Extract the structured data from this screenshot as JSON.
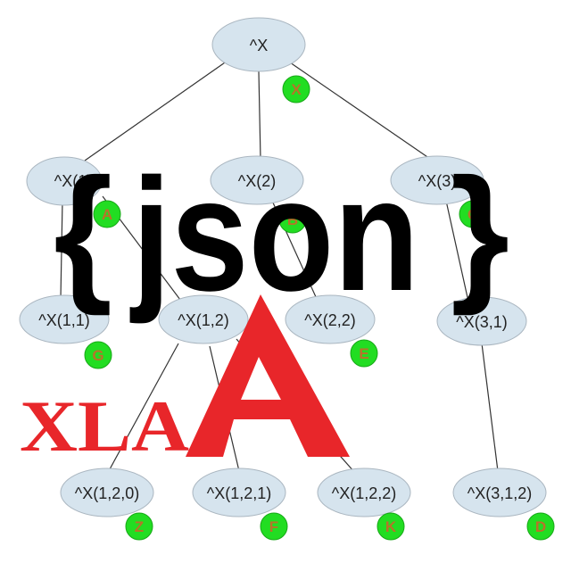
{
  "tree": {
    "nodes": [
      {
        "id": "root",
        "label": "^X",
        "badge": "X"
      },
      {
        "id": "n1",
        "label": "^X(1)",
        "badge": "A"
      },
      {
        "id": "n2",
        "label": "^X(2)",
        "badge": "B"
      },
      {
        "id": "n3",
        "label": "^X(3)",
        "badge": "C"
      },
      {
        "id": "n11",
        "label": "^X(1,1)",
        "badge": "G"
      },
      {
        "id": "n12",
        "label": "^X(1,2)",
        "badge": ""
      },
      {
        "id": "n22",
        "label": "^X(2,2)",
        "badge": "E"
      },
      {
        "id": "n31",
        "label": "^X(3,1)",
        "badge": ""
      },
      {
        "id": "n120",
        "label": "^X(1,2,0)",
        "badge": "Z"
      },
      {
        "id": "n121",
        "label": "^X(1,2,1)",
        "badge": "F"
      },
      {
        "id": "n122",
        "label": "^X(1,2,2)",
        "badge": "K"
      },
      {
        "id": "n312",
        "label": "^X(3,1,2)",
        "badge": "D"
      }
    ]
  },
  "logo": {
    "brace_open": "{",
    "word": "json",
    "brace_close": "}",
    "xla_text": "XLA",
    "xla_color": "#e8262a",
    "text_color": "#000000",
    "node_fill": "#d6e4ee",
    "badge_fill": "#22dd22",
    "badge_text_color": "#b8732a"
  }
}
